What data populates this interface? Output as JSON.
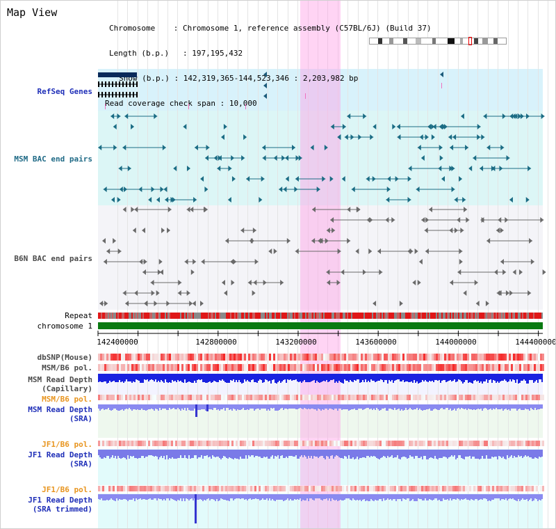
{
  "title": "Map View",
  "info": {
    "chromosome_key": "Chromosome",
    "chromosome_val": "Chromosome 1, reference assembly (C57BL/6J) (Build 37)",
    "length_key": "Length (b.p.)",
    "length_val": "197,195,432",
    "show_key": "Show (b.p.)",
    "show_val": "142,319,365-144,523,346 : 2,203,982 bp",
    "coverage_key": "Read coverage check span",
    "coverage_val": "10,000"
  },
  "tracks": {
    "refseq": "RefSeq Genes",
    "msm_bac": "MSM BAC end pairs",
    "b6n_bac": "B6N BAC end pairs",
    "repeat": "Repeat",
    "chromosome": "chromosome 1",
    "dbsnp": "dbSNP(Mouse)",
    "msm_b6_pol_1": "MSM/B6 pol.",
    "msm_depth_cap_1": "MSM Read Depth",
    "msm_depth_cap_2": "(Capillary)",
    "msm_b6_pol_2": "MSM/B6 pol.",
    "msm_depth_sra_1": "MSM Read Depth",
    "msm_depth_sra_2": "(SRA)",
    "jf1_b6_pol_1": "JF1/B6 pol.",
    "jf1_depth_sra_1": "JF1 Read Depth",
    "jf1_depth_sra_2": "(SRA)",
    "jf1_b6_pol_2": "JF1/B6 pol.",
    "jf1_depth_trim_1": "JF1 Read Depth",
    "jf1_depth_trim_2": "(SRA trimmed)"
  },
  "axis": {
    "ticks": [
      "142400000",
      "142800000",
      "143200000",
      "143600000",
      "144000000",
      "144400000"
    ]
  },
  "colors": {
    "highlight": "#ffa0e6",
    "refseq_bg": "#d8f2fb",
    "msm_bg": "#dcf6f6",
    "b6n_bg": "#f4f4f8",
    "chromosome": "#0a7a12",
    "depth_blue": "#1a22e0",
    "depth_light": "#8a8af0",
    "pol_red": "#f03c3c"
  }
}
